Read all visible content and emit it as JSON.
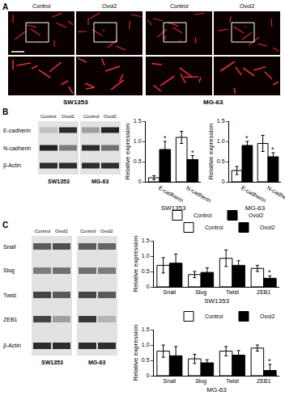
{
  "panel_a": {
    "label": "A",
    "columns": [
      "Control",
      "Ovol2",
      "Control",
      "Ovol2"
    ],
    "cell_lines": [
      "SW1353",
      "MG-63"
    ]
  },
  "panel_b": {
    "label": "B",
    "blot": {
      "columns": [
        "Control",
        "Ovol2",
        "Control",
        "Ovol2"
      ],
      "rows": [
        "E-cadherin",
        "N-cadherin",
        "β-Actin"
      ],
      "cell_lines": [
        "SW1353",
        "MG-63"
      ]
    }
  },
  "panel_c": {
    "label": "C",
    "blot": {
      "columns": [
        "Control",
        "Ovol2",
        "Control",
        "Ovol2"
      ],
      "rows": [
        "Snail",
        "Slug",
        "Twist",
        "ZEB1",
        "β-Actin"
      ],
      "cell_lines": [
        "SW1353",
        "MG-63"
      ]
    }
  },
  "chart_data": [
    {
      "type": "bar",
      "x_label": "SW1353",
      "y_label": "Relative expression",
      "categories": [
        "E-cadherin",
        "N-cadherin"
      ],
      "series": [
        {
          "name": "Control",
          "color": "#ffffff",
          "values": [
            0.1,
            1.1
          ],
          "errors": [
            0.05,
            0.15
          ],
          "marks": [
            null,
            null
          ]
        },
        {
          "name": "Ovol2",
          "color": "#000000",
          "values": [
            0.8,
            0.55
          ],
          "errors": [
            0.2,
            0.1
          ],
          "marks": [
            "*",
            "*"
          ]
        }
      ],
      "ylim": [
        0,
        1.5
      ],
      "yticks": [
        0,
        0.5,
        {
          "value": 1,
          "label": "1.0"
        },
        1.5
      ],
      "grid": false,
      "legend": "bottom"
    },
    {
      "type": "bar",
      "x_label": "MG-63",
      "y_label": "Relative expression",
      "categories": [
        "E-cadherin",
        "N-cadherin"
      ],
      "series": [
        {
          "name": "Control",
          "color": "#ffffff",
          "values": [
            0.28,
            0.95
          ],
          "errors": [
            0.1,
            0.2
          ],
          "marks": [
            null,
            null
          ]
        },
        {
          "name": "Ovol2",
          "color": "#000000",
          "values": [
            0.9,
            0.62
          ],
          "errors": [
            0.1,
            0.1
          ],
          "marks": [
            "*",
            "*"
          ]
        }
      ],
      "ylim": [
        0,
        1.5
      ],
      "yticks": [
        0,
        0.5,
        {
          "value": 1,
          "label": "1.0"
        },
        1.5
      ],
      "grid": false
    },
    {
      "type": "bar",
      "x_label": "SW1353",
      "y_label": "Relative expression",
      "categories": [
        "Snail",
        "Slug",
        "Twist",
        "ZEB1"
      ],
      "series": [
        {
          "name": "Control",
          "color": "#ffffff",
          "values": [
            0.7,
            0.4,
            0.93,
            0.6
          ],
          "errors": [
            0.25,
            0.1,
            0.27,
            0.1
          ],
          "marks": [
            null,
            null,
            null,
            null
          ]
        },
        {
          "name": "Ovol2",
          "color": "#000000",
          "values": [
            0.77,
            0.47,
            0.7,
            0.28
          ],
          "errors": [
            0.3,
            0.15,
            0.15,
            0.08
          ],
          "marks": [
            null,
            null,
            null,
            "*"
          ]
        }
      ],
      "ylim": [
        0,
        1.5
      ],
      "yticks": [
        0,
        0.5,
        {
          "value": 1,
          "label": "1.0"
        },
        1.5
      ],
      "grid": false,
      "legend": "upper right"
    },
    {
      "type": "bar",
      "x_label": "MG-63",
      "y_label": "Relative expression",
      "categories": [
        "Snail",
        "Slug",
        "Twist",
        "ZEB1"
      ],
      "series": [
        {
          "name": "Control",
          "color": "#ffffff",
          "values": [
            0.8,
            0.55,
            0.8,
            0.9
          ],
          "errors": [
            0.2,
            0.15,
            0.15,
            0.1
          ],
          "marks": [
            null,
            null,
            null,
            null
          ]
        },
        {
          "name": "Ovol2",
          "color": "#000000",
          "values": [
            0.65,
            0.42,
            0.67,
            0.17
          ],
          "errors": [
            0.3,
            0.1,
            0.15,
            0.2
          ],
          "marks": [
            null,
            null,
            null,
            "*"
          ]
        }
      ],
      "ylim": [
        0,
        1.5
      ],
      "yticks": [
        0,
        0.5,
        {
          "value": 1,
          "label": "1.0"
        },
        1.5
      ],
      "grid": false,
      "legend": "upper right"
    }
  ]
}
